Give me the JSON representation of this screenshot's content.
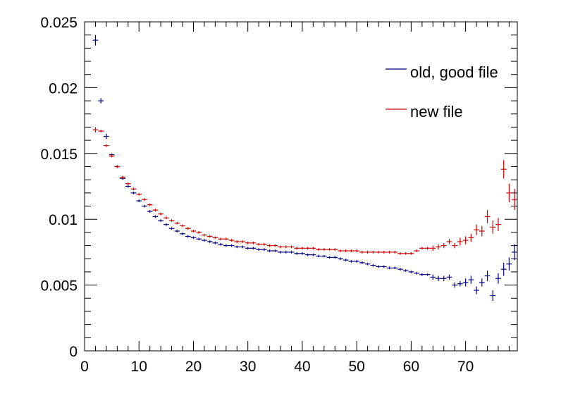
{
  "chart_data": {
    "type": "scatter",
    "title": "",
    "xlabel": "",
    "ylabel": "",
    "xlim": [
      0,
      79.5
    ],
    "ylim": [
      0,
      0.025
    ],
    "x_ticks": [
      0,
      10,
      20,
      30,
      40,
      50,
      60,
      70
    ],
    "x_tick_labels": [
      "0",
      "10",
      "20",
      "30",
      "40",
      "50",
      "60",
      "70"
    ],
    "y_ticks": [
      0,
      0.005,
      0.01,
      0.015,
      0.02,
      0.025
    ],
    "y_tick_labels": [
      "0",
      "0.005",
      "0.01",
      "0.015",
      "0.02",
      "0.025"
    ],
    "grid": false,
    "legend_position": "top-right",
    "x": [
      2,
      3,
      4,
      5,
      6,
      7,
      8,
      9,
      10,
      11,
      12,
      13,
      14,
      15,
      16,
      17,
      18,
      19,
      20,
      21,
      22,
      23,
      24,
      25,
      26,
      27,
      28,
      29,
      30,
      31,
      32,
      33,
      34,
      35,
      36,
      37,
      38,
      39,
      40,
      41,
      42,
      43,
      44,
      45,
      46,
      47,
      48,
      49,
      50,
      51,
      52,
      53,
      54,
      55,
      56,
      57,
      58,
      59,
      60,
      61,
      62,
      63,
      64,
      65,
      66,
      67,
      68,
      69,
      70,
      71,
      72,
      73,
      74,
      75,
      76,
      77,
      78,
      79
    ],
    "series": [
      {
        "name": "old, good file",
        "color": "#000080",
        "values": [
          0.0236,
          0.019,
          0.0163,
          0.0149,
          0.014,
          0.0131,
          0.0125,
          0.012,
          0.0114,
          0.011,
          0.0106,
          0.0102,
          0.0099,
          0.0096,
          0.0093,
          0.0091,
          0.0089,
          0.0087,
          0.0086,
          0.0085,
          0.0084,
          0.0083,
          0.0082,
          0.0081,
          0.008,
          0.008,
          0.0079,
          0.0079,
          0.0078,
          0.0078,
          0.0077,
          0.0077,
          0.0076,
          0.0076,
          0.0075,
          0.0075,
          0.0075,
          0.0074,
          0.0074,
          0.0073,
          0.0073,
          0.0072,
          0.0072,
          0.0071,
          0.0071,
          0.007,
          0.0069,
          0.0068,
          0.0068,
          0.0067,
          0.0066,
          0.0065,
          0.0064,
          0.0064,
          0.0063,
          0.0063,
          0.0062,
          0.0061,
          0.006,
          0.0059,
          0.0058,
          0.0058,
          0.0056,
          0.0055,
          0.0055,
          0.0056,
          0.005,
          0.0051,
          0.0052,
          0.0054,
          0.0046,
          0.0052,
          0.0057,
          0.0042,
          0.0055,
          0.0062,
          0.0066,
          0.0075
        ],
        "errors": [
          0.0004,
          0.0002,
          0.0002,
          0.0001,
          0.0001,
          0.0001,
          0.0001,
          0.0001,
          0.0001,
          0.0001,
          0.0001,
          0.0001,
          0.0001,
          0.0001,
          0.0001,
          0.0001,
          0.0001,
          0.0001,
          0.0001,
          0.0001,
          0.0001,
          0.0001,
          0.0001,
          0.0001,
          0.0001,
          0.0001,
          0.0001,
          0.0001,
          0.0001,
          0.0001,
          0.0001,
          0.0001,
          0.0001,
          0.0001,
          0.0001,
          0.0001,
          0.0001,
          0.0001,
          0.0001,
          0.0001,
          0.0001,
          0.0001,
          0.0001,
          0.0001,
          0.0001,
          0.0001,
          0.0001,
          0.0001,
          0.0001,
          0.0001,
          0.0001,
          0.0001,
          0.0001,
          0.0001,
          0.0001,
          0.0001,
          0.0001,
          0.0001,
          0.0001,
          0.0001,
          0.0001,
          0.0001,
          0.0002,
          0.0002,
          0.0002,
          0.0002,
          0.0002,
          0.0002,
          0.0003,
          0.0003,
          0.0003,
          0.0003,
          0.0004,
          0.0004,
          0.0004,
          0.0005,
          0.0005,
          0.0006
        ]
      },
      {
        "name": "new file",
        "color": "#cc0000",
        "values": [
          0.0168,
          0.0167,
          0.0156,
          0.0148,
          0.014,
          0.0132,
          0.0127,
          0.0123,
          0.0119,
          0.0115,
          0.0111,
          0.0107,
          0.0104,
          0.0101,
          0.0099,
          0.0097,
          0.0095,
          0.0093,
          0.0091,
          0.009,
          0.0088,
          0.0087,
          0.0086,
          0.0085,
          0.0085,
          0.0084,
          0.0083,
          0.0083,
          0.0082,
          0.0082,
          0.0081,
          0.0081,
          0.008,
          0.008,
          0.0079,
          0.0079,
          0.0079,
          0.0078,
          0.0078,
          0.0078,
          0.0078,
          0.0077,
          0.0077,
          0.0077,
          0.0077,
          0.0076,
          0.0076,
          0.0076,
          0.0076,
          0.0075,
          0.0075,
          0.0075,
          0.0075,
          0.0075,
          0.0075,
          0.0075,
          0.0074,
          0.0074,
          0.0074,
          0.0076,
          0.0078,
          0.0078,
          0.0078,
          0.0079,
          0.008,
          0.0083,
          0.008,
          0.0083,
          0.0084,
          0.0086,
          0.0092,
          0.0091,
          0.0102,
          0.0094,
          0.0096,
          0.0138,
          0.012,
          0.0115
        ],
        "errors": [
          0.0002,
          0.0001,
          0.0001,
          0.0001,
          0.0001,
          0.0001,
          0.0001,
          0.0001,
          0.0001,
          0.0001,
          0.0001,
          0.0001,
          0.0001,
          0.0001,
          0.0001,
          0.0001,
          0.0001,
          0.0001,
          0.0001,
          0.0001,
          0.0001,
          0.0001,
          0.0001,
          0.0001,
          0.0001,
          0.0001,
          0.0001,
          0.0001,
          0.0001,
          0.0001,
          0.0001,
          0.0001,
          0.0001,
          0.0001,
          0.0001,
          0.0001,
          0.0001,
          0.0001,
          0.0001,
          0.0001,
          0.0001,
          0.0001,
          0.0001,
          0.0001,
          0.0001,
          0.0001,
          0.0001,
          0.0001,
          0.0001,
          0.0001,
          0.0001,
          0.0001,
          0.0001,
          0.0001,
          0.0001,
          0.0001,
          0.0001,
          0.0001,
          0.0001,
          0.0001,
          0.0001,
          0.0001,
          0.0002,
          0.0002,
          0.0002,
          0.0002,
          0.0002,
          0.0003,
          0.0003,
          0.0003,
          0.0004,
          0.0004,
          0.0005,
          0.0005,
          0.0005,
          0.0007,
          0.0007,
          0.0008
        ]
      }
    ]
  }
}
